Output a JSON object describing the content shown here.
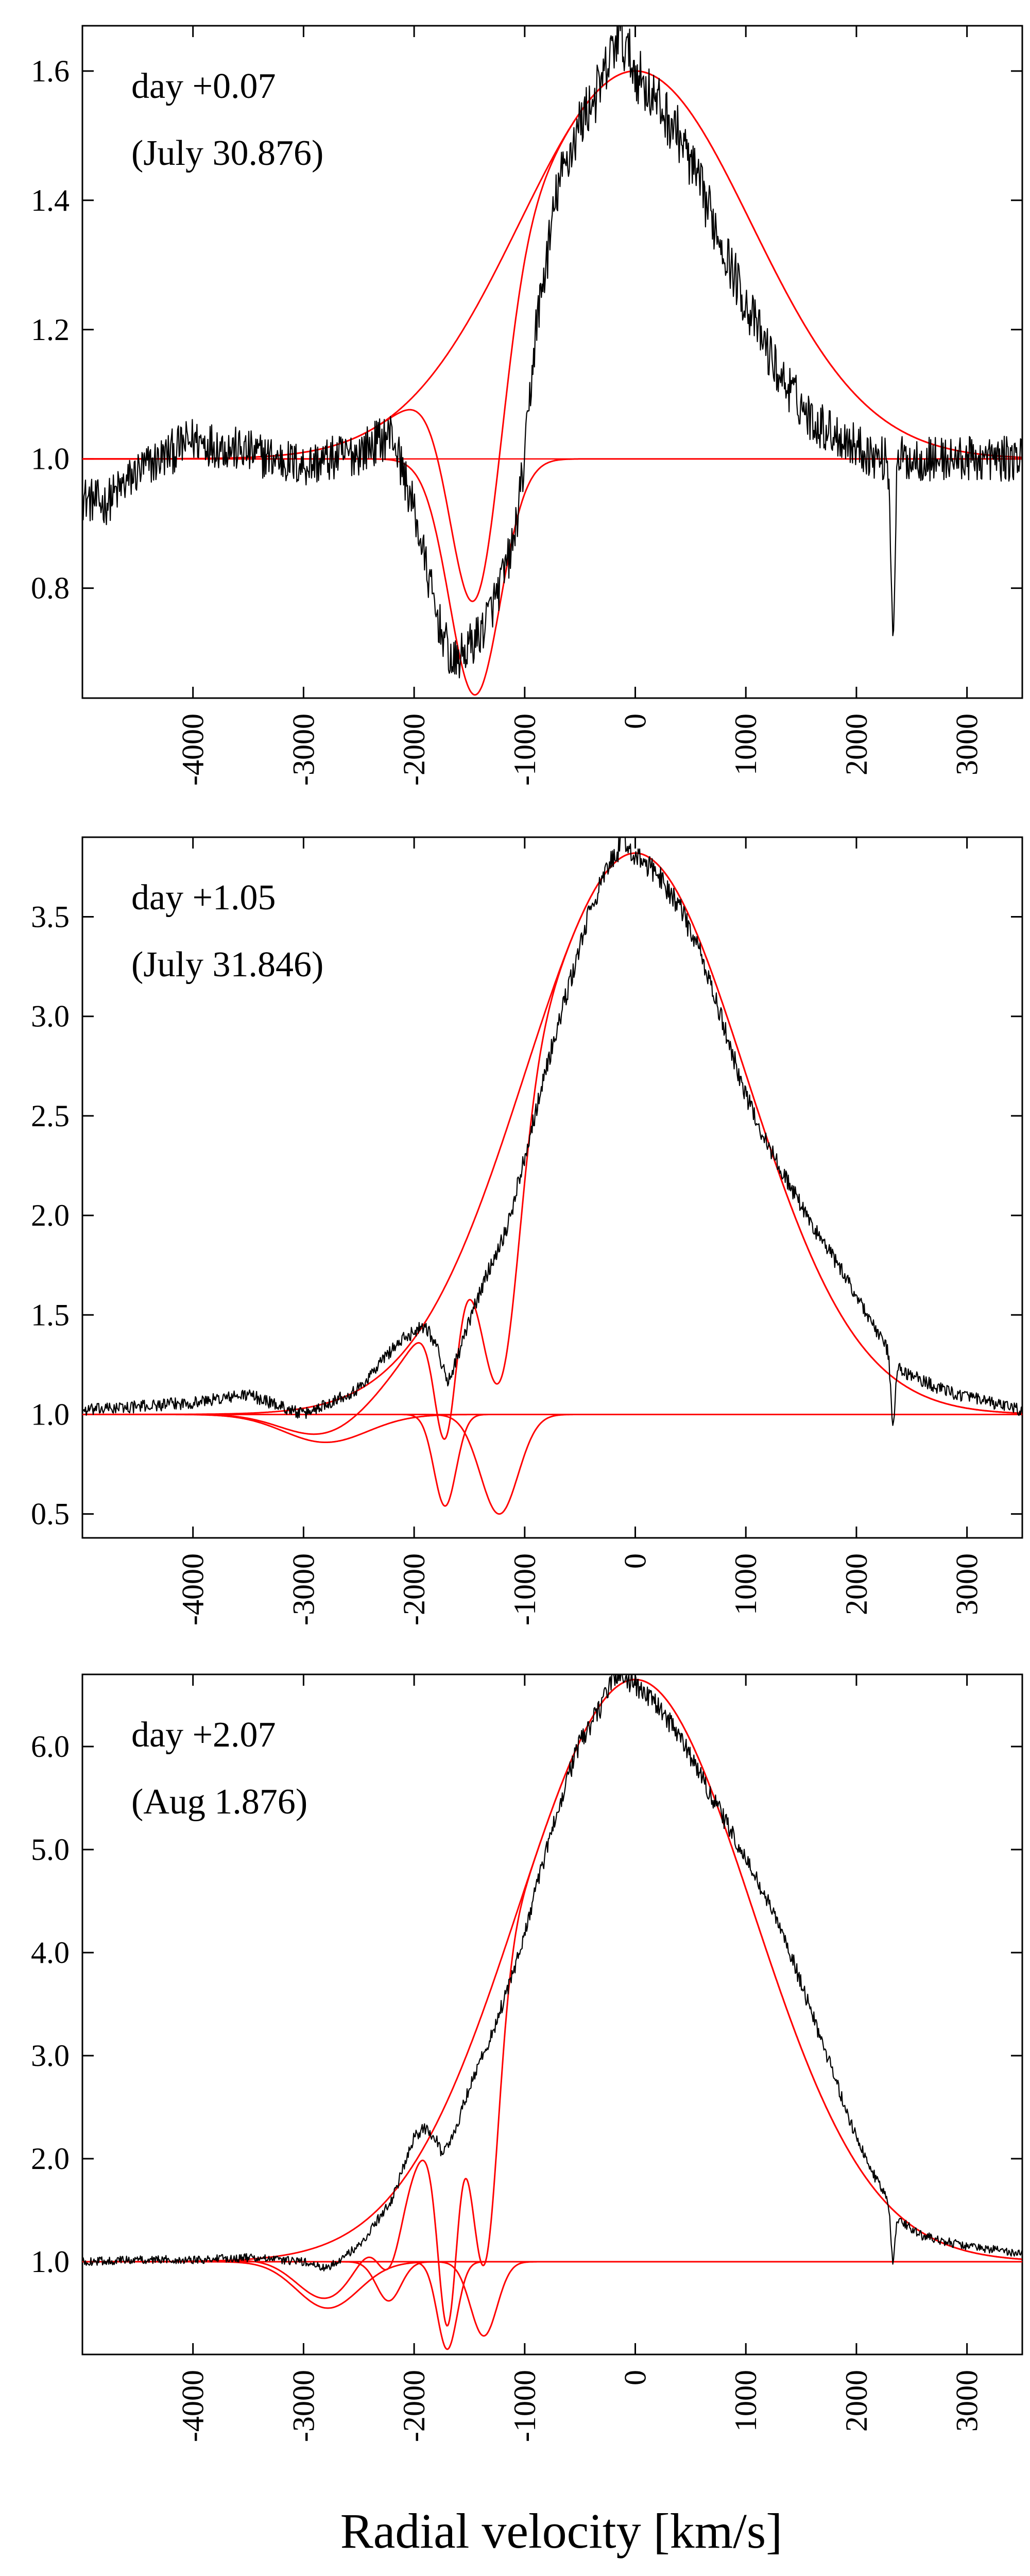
{
  "chart_data": {
    "type": "line",
    "xlabel": "Radial velocity [km/s]",
    "colors": {
      "observed": "#000000",
      "model": "#ff0000",
      "axes": "#000000"
    },
    "panels": [
      {
        "annotation_lines": [
          "day +0.07",
          "(July 30.876)"
        ],
        "xlim": [
          -5000,
          3500
        ],
        "ylim": [
          0.63,
          1.67
        ],
        "xticks": [
          -4000,
          -3000,
          -2000,
          -1000,
          0,
          1000,
          2000,
          3000
        ],
        "xtick_labels": [
          "-4000",
          "-3000",
          "-2000",
          "-1000",
          "0",
          "1000",
          "2000",
          "3000"
        ],
        "yticks": [
          0.8,
          1.0,
          1.2,
          1.4,
          1.6
        ],
        "ytick_labels": [
          "0.8",
          "1.0",
          "1.2",
          "1.4",
          "1.6"
        ],
        "emission": {
          "amp": 0.6,
          "center": 0,
          "sigma": 1050
        },
        "absorptions": [
          {
            "depth": 0.365,
            "center": -1450,
            "sigma": 230
          }
        ],
        "telluric": {
          "center": 2330,
          "depth": 0.26,
          "width": 18
        },
        "observed_anchors": [
          [
            -5000,
            0.94
          ],
          [
            -4800,
            0.93
          ],
          [
            -4500,
            0.98
          ],
          [
            -4000,
            1.03
          ],
          [
            -3500,
            1.01
          ],
          [
            -3000,
            0.99
          ],
          [
            -2500,
            1.01
          ],
          [
            -2200,
            1.04
          ],
          [
            -2000,
            0.92
          ],
          [
            -1800,
            0.76
          ],
          [
            -1650,
            0.68
          ],
          [
            -1550,
            0.7
          ],
          [
            -1400,
            0.73
          ],
          [
            -1250,
            0.79
          ],
          [
            -1100,
            0.87
          ],
          [
            -1000,
            1.0
          ],
          [
            -900,
            1.2
          ],
          [
            -700,
            1.42
          ],
          [
            -500,
            1.52
          ],
          [
            -300,
            1.58
          ],
          [
            -150,
            1.66
          ],
          [
            0,
            1.6
          ],
          [
            200,
            1.55
          ],
          [
            400,
            1.5
          ],
          [
            700,
            1.37
          ],
          [
            1000,
            1.24
          ],
          [
            1300,
            1.13
          ],
          [
            1600,
            1.06
          ],
          [
            1900,
            1.03
          ],
          [
            2200,
            1.0
          ],
          [
            2500,
            1.0
          ],
          [
            3000,
            1.0
          ],
          [
            3500,
            1.0
          ]
        ],
        "noise_amp": 0.035
      },
      {
        "annotation_lines": [
          "day +1.05",
          "(July 31.846)"
        ],
        "xlim": [
          -5000,
          3500
        ],
        "ylim": [
          0.38,
          3.9
        ],
        "xticks": [
          -4000,
          -3000,
          -2000,
          -1000,
          0,
          1000,
          2000,
          3000
        ],
        "xtick_labels": [
          "-4000",
          "-3000",
          "-2000",
          "-1000",
          "0",
          "1000",
          "2000",
          "3000"
        ],
        "yticks": [
          0.5,
          1.0,
          1.5,
          2.0,
          2.5,
          3.0,
          3.5
        ],
        "ytick_labels": [
          "0.5",
          "1.0",
          "1.5",
          "2.0",
          "2.5",
          "3.0",
          "3.5"
        ],
        "emission": {
          "amp": 2.82,
          "center": 0,
          "sigma": 1000
        },
        "absorptions": [
          {
            "depth": 0.14,
            "center": -2800,
            "sigma": 380
          },
          {
            "depth": 0.46,
            "center": -1720,
            "sigma": 100
          },
          {
            "depth": 0.5,
            "center": -1230,
            "sigma": 170
          }
        ],
        "telluric": {
          "center": 2330,
          "depth": 0.35,
          "width": 18
        },
        "observed_anchors": [
          [
            -5000,
            1.02
          ],
          [
            -4500,
            1.04
          ],
          [
            -4000,
            1.06
          ],
          [
            -3500,
            1.1
          ],
          [
            -3000,
            1.0
          ],
          [
            -2500,
            1.13
          ],
          [
            -2200,
            1.33
          ],
          [
            -2000,
            1.42
          ],
          [
            -1900,
            1.45
          ],
          [
            -1800,
            1.35
          ],
          [
            -1700,
            1.16
          ],
          [
            -1600,
            1.3
          ],
          [
            -1450,
            1.55
          ],
          [
            -1300,
            1.76
          ],
          [
            -1150,
            1.95
          ],
          [
            -1000,
            2.3
          ],
          [
            -800,
            2.75
          ],
          [
            -600,
            3.15
          ],
          [
            -400,
            3.55
          ],
          [
            -200,
            3.8
          ],
          [
            -100,
            3.88
          ],
          [
            0,
            3.8
          ],
          [
            200,
            3.72
          ],
          [
            400,
            3.55
          ],
          [
            600,
            3.3
          ],
          [
            800,
            2.95
          ],
          [
            1000,
            2.6
          ],
          [
            1200,
            2.35
          ],
          [
            1400,
            2.15
          ],
          [
            1600,
            1.95
          ],
          [
            1800,
            1.78
          ],
          [
            2000,
            1.6
          ],
          [
            2200,
            1.4
          ],
          [
            2400,
            1.22
          ],
          [
            2800,
            1.12
          ],
          [
            3200,
            1.06
          ],
          [
            3500,
            1.02
          ]
        ],
        "noise_amp": 0.03
      },
      {
        "annotation_lines": [
          "day +2.07",
          "(Aug 1.876)"
        ],
        "xlim": [
          -5000,
          3500
        ],
        "ylim": [
          0.1,
          6.7
        ],
        "xticks": [
          -4000,
          -3000,
          -2000,
          -1000,
          0,
          1000,
          2000,
          3000
        ],
        "xtick_labels": [
          "-4000",
          "-3000",
          "-2000",
          "-1000",
          "0",
          "1000",
          "2000",
          "3000"
        ],
        "yticks": [
          1.0,
          2.0,
          3.0,
          4.0,
          5.0,
          6.0
        ],
        "ytick_labels": [
          "1.0",
          "2.0",
          "3.0",
          "4.0",
          "5.0",
          "6.0"
        ],
        "emission": {
          "amp": 5.65,
          "center": 0,
          "sigma": 1060
        },
        "absorptions": [
          {
            "depth": 0.45,
            "center": -2780,
            "sigma": 280
          },
          {
            "depth": 0.38,
            "center": -2230,
            "sigma": 110
          },
          {
            "depth": 0.85,
            "center": -1700,
            "sigma": 90
          },
          {
            "depth": 0.72,
            "center": -1370,
            "sigma": 120
          }
        ],
        "telluric": {
          "center": 2330,
          "depth": 0.5,
          "width": 18
        },
        "observed_anchors": [
          [
            -5000,
            1.0
          ],
          [
            -4500,
            1.02
          ],
          [
            -4000,
            1.02
          ],
          [
            -3500,
            1.04
          ],
          [
            -3000,
            1.0
          ],
          [
            -2800,
            0.93
          ],
          [
            -2500,
            1.15
          ],
          [
            -2200,
            1.6
          ],
          [
            -2000,
            2.2
          ],
          [
            -1900,
            2.3
          ],
          [
            -1800,
            2.2
          ],
          [
            -1750,
            2.05
          ],
          [
            -1650,
            2.2
          ],
          [
            -1500,
            2.7
          ],
          [
            -1300,
            3.2
          ],
          [
            -1100,
            3.8
          ],
          [
            -900,
            4.6
          ],
          [
            -700,
            5.4
          ],
          [
            -500,
            6.05
          ],
          [
            -300,
            6.4
          ],
          [
            -200,
            6.7
          ],
          [
            0,
            6.6
          ],
          [
            200,
            6.4
          ],
          [
            400,
            6.1
          ],
          [
            600,
            5.7
          ],
          [
            800,
            5.3
          ],
          [
            1000,
            4.9
          ],
          [
            1200,
            4.5
          ],
          [
            1400,
            4.0
          ],
          [
            1600,
            3.4
          ],
          [
            1800,
            2.8
          ],
          [
            2000,
            2.2
          ],
          [
            2200,
            1.75
          ],
          [
            2400,
            1.4
          ],
          [
            2600,
            1.25
          ],
          [
            3000,
            1.15
          ],
          [
            3500,
            1.08
          ]
        ],
        "noise_amp": 0.04
      }
    ]
  }
}
